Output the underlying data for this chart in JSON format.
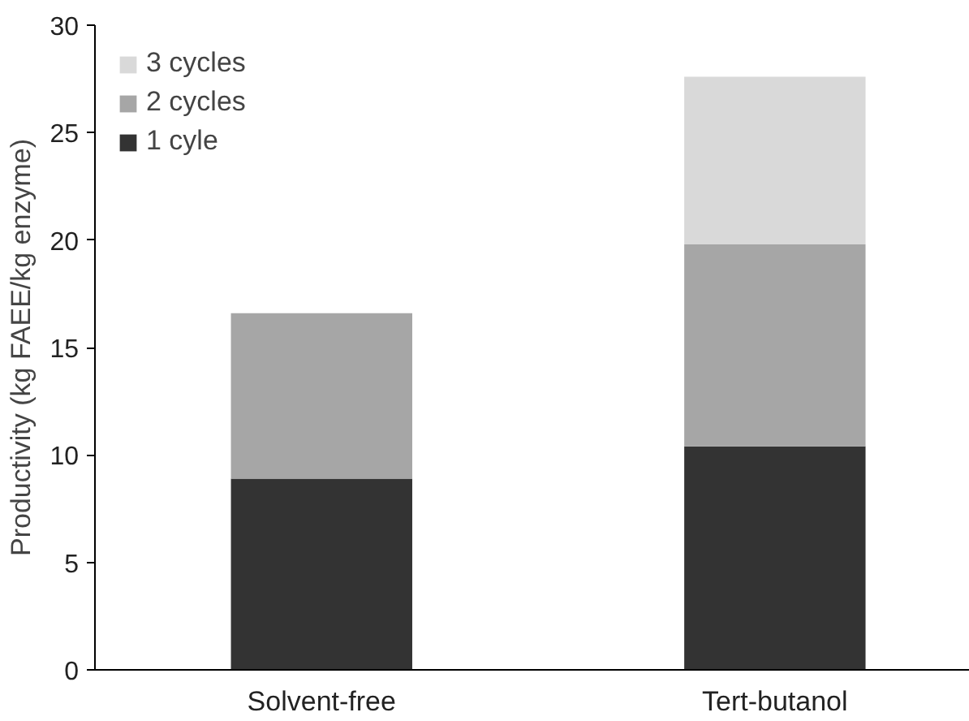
{
  "chart_data": {
    "type": "bar",
    "stacked": true,
    "ylabel": "Productivity (kg FAEE/kg enzyme)",
    "categories": [
      "Solvent-free",
      "Tert-butanol"
    ],
    "series": [
      {
        "name": "1 cyle",
        "color": "#333333",
        "values": [
          8.9,
          10.4
        ]
      },
      {
        "name": "2 cycles",
        "color": "#a6a6a6",
        "values": [
          7.7,
          9.4
        ]
      },
      {
        "name": "3 cycles",
        "color": "#d9d9d9",
        "values": [
          null,
          7.8
        ]
      }
    ],
    "ylim": [
      0,
      30
    ],
    "yticks": [
      0,
      5,
      10,
      15,
      20,
      25,
      30
    ],
    "grid": false,
    "legend": "top left"
  }
}
